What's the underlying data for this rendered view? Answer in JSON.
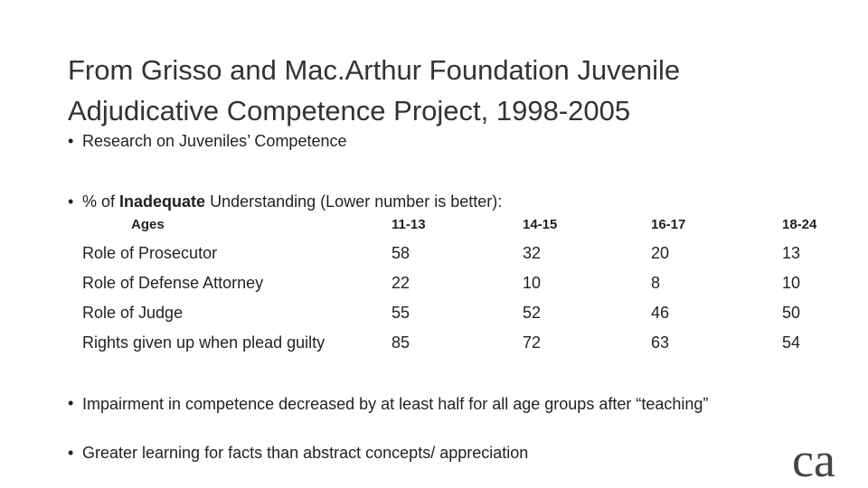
{
  "title": {
    "line1": "From Grisso and Mac.Arthur Foundation Juvenile",
    "line2": "Adjudicative Competence Project, 1998-2005"
  },
  "bullets": {
    "research": "Research on Juveniles’ Competence",
    "measure": {
      "prefix": "% of",
      "bold": "Inadequate",
      "suffix": "Understanding (Lower number is better):"
    }
  },
  "table": {
    "header": [
      "Ages",
      "11-13",
      "14-15",
      "16-17",
      "18-24"
    ],
    "rows": [
      [
        "Role of Prosecutor",
        58,
        32,
        20,
        13
      ],
      [
        "Role of Defense Attorney",
        22,
        10,
        8,
        10
      ],
      [
        "Role of Judge",
        55,
        52,
        46,
        50
      ],
      [
        "Rights given up when plead guilty",
        85,
        72,
        63,
        54
      ]
    ]
  },
  "notes": [
    "Impairment in competence decreased by at least half for all age groups after “teaching”",
    "Greater learning for facts than abstract concepts/ appreciation"
  ],
  "logo": "ca"
}
